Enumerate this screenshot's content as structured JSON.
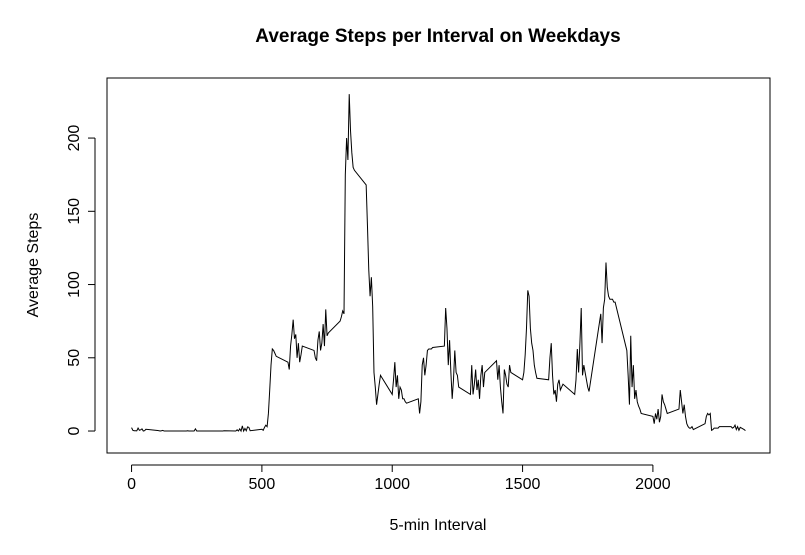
{
  "chart_data": {
    "type": "line",
    "title": "Average Steps per Interval on Weekdays",
    "xlabel": "5-min Interval",
    "ylabel": "Average Steps",
    "x": [
      0,
      5,
      10,
      15,
      20,
      25,
      30,
      35,
      40,
      45,
      50,
      55,
      100,
      105,
      110,
      115,
      120,
      125,
      130,
      135,
      140,
      145,
      150,
      155,
      200,
      205,
      210,
      215,
      220,
      225,
      230,
      235,
      240,
      245,
      250,
      255,
      300,
      305,
      310,
      315,
      320,
      325,
      330,
      335,
      340,
      345,
      350,
      355,
      400,
      405,
      410,
      415,
      420,
      425,
      430,
      435,
      440,
      445,
      450,
      455,
      500,
      505,
      510,
      515,
      520,
      525,
      530,
      535,
      540,
      545,
      550,
      555,
      600,
      605,
      610,
      615,
      620,
      625,
      630,
      635,
      640,
      645,
      650,
      655,
      700,
      705,
      710,
      715,
      720,
      725,
      730,
      735,
      740,
      745,
      750,
      755,
      800,
      805,
      810,
      815,
      820,
      825,
      830,
      835,
      840,
      845,
      850,
      855,
      900,
      905,
      910,
      915,
      920,
      925,
      930,
      935,
      940,
      945,
      950,
      955,
      1000,
      1005,
      1010,
      1015,
      1020,
      1025,
      1030,
      1035,
      1040,
      1045,
      1050,
      1055,
      1100,
      1105,
      1110,
      1115,
      1120,
      1125,
      1130,
      1135,
      1140,
      1145,
      1150,
      1155,
      1200,
      1205,
      1210,
      1215,
      1220,
      1225,
      1230,
      1235,
      1240,
      1245,
      1250,
      1255,
      1300,
      1305,
      1310,
      1315,
      1320,
      1325,
      1330,
      1335,
      1340,
      1345,
      1350,
      1355,
      1400,
      1405,
      1410,
      1415,
      1420,
      1425,
      1430,
      1435,
      1440,
      1445,
      1450,
      1455,
      1500,
      1505,
      1510,
      1515,
      1520,
      1525,
      1530,
      1535,
      1540,
      1545,
      1550,
      1555,
      1600,
      1605,
      1610,
      1615,
      1620,
      1625,
      1630,
      1635,
      1640,
      1645,
      1650,
      1655,
      1700,
      1705,
      1710,
      1715,
      1720,
      1725,
      1730,
      1735,
      1740,
      1745,
      1750,
      1755,
      1800,
      1805,
      1810,
      1815,
      1820,
      1825,
      1830,
      1835,
      1840,
      1845,
      1850,
      1855,
      1900,
      1905,
      1910,
      1915,
      1920,
      1925,
      1930,
      1935,
      1940,
      1945,
      1950,
      1955,
      2000,
      2005,
      2010,
      2015,
      2020,
      2025,
      2030,
      2035,
      2040,
      2045,
      2050,
      2055,
      2100,
      2105,
      2110,
      2115,
      2120,
      2125,
      2130,
      2135,
      2140,
      2145,
      2150,
      2155,
      2200,
      2205,
      2210,
      2215,
      2220,
      2225,
      2230,
      2235,
      2240,
      2245,
      2250,
      2255,
      2300,
      2305,
      2310,
      2315,
      2320,
      2325,
      2330,
      2335,
      2340,
      2345,
      2350,
      2355
    ],
    "values": [
      2.3,
      0.5,
      0.2,
      0.2,
      0.1,
      2.0,
      0.5,
      0.8,
      1.5,
      0,
      0.2,
      1.2,
      0.4,
      0.2,
      0,
      0.2,
      0.4,
      0,
      0,
      0,
      0,
      0,
      0,
      0,
      0,
      0,
      0,
      0.2,
      0,
      0,
      0,
      0,
      0,
      1.5,
      0,
      0,
      0,
      0,
      0,
      0,
      0,
      0,
      0,
      0,
      0,
      0,
      0,
      0.2,
      0,
      0.8,
      0,
      1.5,
      0,
      3.5,
      0,
      1.8,
      0.2,
      2.8,
      2.5,
      0.2,
      1.2,
      0.5,
      2.5,
      4,
      3,
      12,
      28,
      45,
      56,
      55,
      53,
      51,
      47,
      42,
      58,
      66,
      76,
      63,
      66,
      50,
      60,
      47,
      52,
      58,
      55,
      50,
      48,
      62,
      68,
      55,
      60,
      73,
      58,
      83,
      65,
      67,
      75,
      78,
      82,
      80,
      175,
      200,
      185,
      230,
      205,
      190,
      180,
      178,
      168,
      140,
      110,
      92,
      105,
      85,
      40,
      30,
      18,
      25,
      32,
      38,
      25,
      35,
      47,
      30,
      38,
      22,
      30,
      28,
      22,
      22,
      20,
      19,
      22,
      12,
      20,
      45,
      50,
      38,
      45,
      55,
      56,
      56,
      56,
      57,
      58,
      84,
      70,
      45,
      62,
      40,
      22,
      35,
      55,
      40,
      38,
      30,
      25,
      45,
      25,
      32,
      42,
      28,
      35,
      22,
      38,
      45,
      30,
      40,
      48,
      35,
      45,
      30,
      20,
      12,
      42,
      38,
      32,
      30,
      45,
      40,
      35,
      40,
      52,
      70,
      96,
      92,
      70,
      60,
      55,
      45,
      40,
      36,
      35,
      50,
      60,
      38,
      25,
      28,
      20,
      32,
      35,
      28,
      30,
      32,
      25,
      35,
      56,
      40,
      60,
      84,
      38,
      45,
      40,
      35,
      30,
      27,
      80,
      60,
      84,
      90,
      115,
      98,
      92,
      90,
      90,
      90,
      88,
      88,
      55,
      38,
      18,
      65,
      30,
      45,
      22,
      28,
      20,
      17,
      15,
      12,
      10,
      5,
      12,
      8,
      15,
      6,
      10,
      25,
      20,
      18,
      15,
      12,
      15,
      28,
      20,
      12,
      18,
      10,
      5,
      3,
      2,
      2,
      3,
      1,
      5,
      10,
      12,
      11,
      12,
      0.5,
      1,
      2,
      2,
      2,
      2,
      3,
      3,
      2,
      2.5,
      4,
      1,
      3,
      0.5,
      2.5,
      2,
      1.5,
      1,
      0.3
    ],
    "color": "#000000",
    "xlim": [
      -94.2,
      2449.2
    ],
    "ylim": [
      -15,
      241
    ],
    "xticks": [
      0,
      500,
      1000,
      1500,
      2000
    ],
    "yticks": [
      0,
      50,
      100,
      150,
      200
    ]
  }
}
